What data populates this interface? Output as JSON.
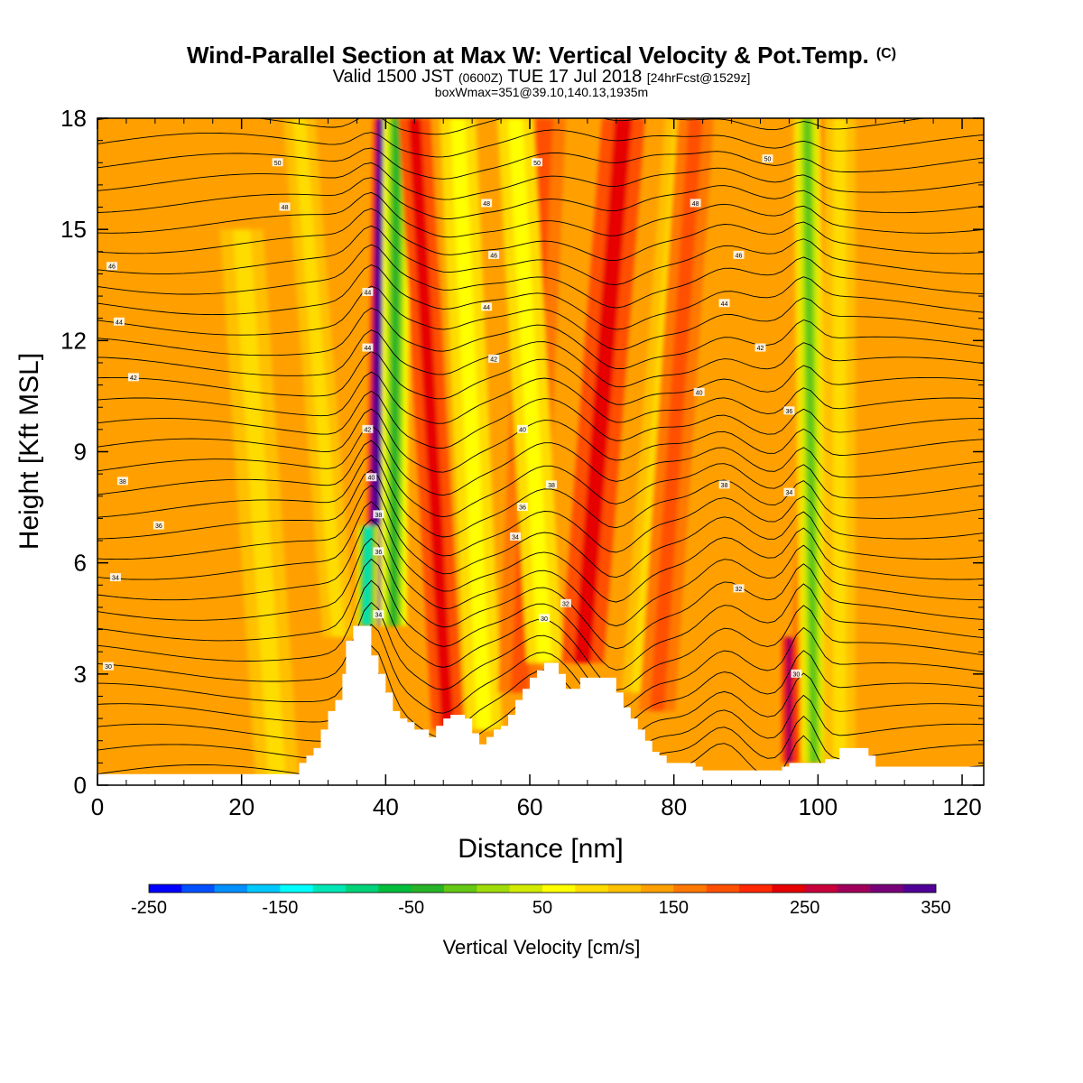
{
  "header": {
    "title_main": "Wind-Parallel Section at Max W: Vertical Velocity & Pot.Temp.",
    "title_mark": "(C)",
    "subtitle_a": "Valid 1500 JST ",
    "subtitle_b": "(0600Z)",
    "subtitle_c": " TUE 17 Jul 2018 ",
    "subtitle_d": "[24hrFcst@1529z]",
    "subtitle2": "boxWmax=351@39.10,140.13,1935m"
  },
  "chart_data": {
    "type": "heatmap",
    "xlabel": "Distance [nm]",
    "ylabel": "Height [Kft MSL]",
    "xlim": [
      0,
      123
    ],
    "ylim": [
      0,
      18
    ],
    "xticks": [
      0,
      20,
      40,
      60,
      80,
      100,
      120
    ],
    "yticks": [
      0,
      3,
      6,
      9,
      12,
      15,
      18
    ],
    "colorbar": {
      "title": "Vertical Velocity [cm/s]",
      "min": -250,
      "max": 350,
      "step": 25,
      "tick_values": [
        -250,
        -150,
        -50,
        50,
        150,
        250,
        350
      ],
      "tick_labels": [
        "-250",
        "-150",
        "-50",
        "50",
        "150",
        "250",
        "350"
      ],
      "colors": [
        "#0000ff",
        "#0050ff",
        "#0090ff",
        "#00c8ff",
        "#00ffff",
        "#00e6b4",
        "#00d278",
        "#00be3c",
        "#28b428",
        "#64c814",
        "#a0dc0a",
        "#d2ea00",
        "#ffff00",
        "#ffdc00",
        "#ffc000",
        "#ffa000",
        "#ff7800",
        "#ff5000",
        "#ff2800",
        "#e60000",
        "#c8003c",
        "#a0005a",
        "#780078",
        "#500096"
      ]
    },
    "background_level": 15,
    "features": [
      {
        "x_base": 38.5,
        "top_x": 40,
        "w": 1.3,
        "ymin": 4.3,
        "ymax": 18,
        "value": 330
      },
      {
        "x_base": 37.0,
        "top_x": 38.5,
        "w": 1.1,
        "ymin": 4.3,
        "ymax": 7,
        "value": -230
      },
      {
        "x_base": 41.0,
        "top_x": 41.5,
        "w": 1.5,
        "ymin": 4.3,
        "ymax": 18,
        "value": -160
      },
      {
        "x_base": 49,
        "top_x": 44,
        "w": 2.2,
        "ymin": 1.5,
        "ymax": 18,
        "value": 110
      },
      {
        "x_base": 54,
        "top_x": 50,
        "w": 2.5,
        "ymin": 1.5,
        "ymax": 18,
        "value": -60
      },
      {
        "x_base": 58,
        "top_x": 62,
        "w": 3.0,
        "ymin": 2.5,
        "ymax": 18,
        "value": 60
      },
      {
        "x_base": 63,
        "top_x": 58,
        "w": 2.5,
        "ymin": 3.3,
        "ymax": 18,
        "value": -60
      },
      {
        "x_base": 66,
        "top_x": 73,
        "w": 3.0,
        "ymin": 3.3,
        "ymax": 18,
        "value": 120
      },
      {
        "x_base": 74,
        "top_x": 81,
        "w": 2.2,
        "ymin": 2.5,
        "ymax": 18,
        "value": -50
      },
      {
        "x_base": 77,
        "top_x": 83,
        "w": 2.5,
        "ymin": 2,
        "ymax": 18,
        "value": 70
      },
      {
        "x_base": 97,
        "top_x": 101,
        "w": 1.5,
        "ymin": 0.6,
        "ymax": 18,
        "value": 80
      },
      {
        "x_base": 99.5,
        "top_x": 98.5,
        "w": 1.6,
        "ymin": 0.6,
        "ymax": 18,
        "value": -150
      },
      {
        "x_base": 96,
        "top_x": 96,
        "w": 0.9,
        "ymin": 0.6,
        "ymax": 4,
        "value": 150
      },
      {
        "x_base": 103,
        "top_x": 103,
        "w": 2.2,
        "ymin": 0.6,
        "ymax": 18,
        "value": -50
      },
      {
        "x_base": 35,
        "top_x": 28,
        "w": 2.2,
        "ymin": 4,
        "ymax": 18,
        "value": -50
      },
      {
        "x_base": 25,
        "top_x": 19,
        "w": 3.0,
        "ymin": 0,
        "ymax": 15,
        "value": -40
      }
    ],
    "terrain": [
      [
        0,
        0.3
      ],
      [
        27,
        0.3
      ],
      [
        28,
        0.6
      ],
      [
        29,
        0.8
      ],
      [
        30,
        1.0
      ],
      [
        31,
        1.5
      ],
      [
        32,
        2.0
      ],
      [
        33,
        2.3
      ],
      [
        34,
        3.0
      ],
      [
        34.5,
        3.9
      ],
      [
        35.5,
        4.3
      ],
      [
        37.5,
        4.3
      ],
      [
        38,
        3.5
      ],
      [
        39,
        3.0
      ],
      [
        40,
        2.5
      ],
      [
        41,
        2.0
      ],
      [
        42,
        1.8
      ],
      [
        43,
        1.7
      ],
      [
        44,
        1.5
      ],
      [
        45,
        1.5
      ],
      [
        46,
        1.3
      ],
      [
        47,
        1.6
      ],
      [
        48,
        1.8
      ],
      [
        49,
        1.9
      ],
      [
        51,
        1.8
      ],
      [
        52,
        1.4
      ],
      [
        53,
        1.1
      ],
      [
        54,
        1.3
      ],
      [
        55,
        1.5
      ],
      [
        56,
        1.6
      ],
      [
        57,
        1.9
      ],
      [
        58,
        2.3
      ],
      [
        59,
        2.6
      ],
      [
        60,
        2.9
      ],
      [
        61,
        3.1
      ],
      [
        62,
        3.3
      ],
      [
        63.5,
        3.3
      ],
      [
        64,
        3.0
      ],
      [
        65,
        2.6
      ],
      [
        66,
        2.6
      ],
      [
        67,
        2.9
      ],
      [
        71,
        2.9
      ],
      [
        72,
        2.5
      ],
      [
        73,
        2.1
      ],
      [
        74,
        1.8
      ],
      [
        75,
        1.5
      ],
      [
        76,
        1.2
      ],
      [
        77,
        0.9
      ],
      [
        78,
        0.8
      ],
      [
        79,
        0.6
      ],
      [
        83,
        0.5
      ],
      [
        84,
        0.4
      ],
      [
        90,
        0.4
      ],
      [
        94,
        0.4
      ],
      [
        95,
        0.5
      ],
      [
        96,
        0.6
      ],
      [
        100,
        0.6
      ],
      [
        101,
        0.7
      ],
      [
        103,
        1.0
      ],
      [
        106,
        1.0
      ],
      [
        107,
        0.8
      ],
      [
        108,
        0.5
      ],
      [
        123,
        0.3
      ]
    ],
    "contour_labels": [
      {
        "x": 25,
        "y": 16.8,
        "text": "50"
      },
      {
        "x": 26,
        "y": 15.6,
        "text": "48"
      },
      {
        "x": 2,
        "y": 14.0,
        "text": "46"
      },
      {
        "x": 3,
        "y": 12.5,
        "text": "44"
      },
      {
        "x": 5,
        "y": 11.0,
        "text": "42"
      },
      {
        "x": 3.5,
        "y": 8.2,
        "text": "38"
      },
      {
        "x": 8.5,
        "y": 7.0,
        "text": "36"
      },
      {
        "x": 2.5,
        "y": 5.6,
        "text": "34"
      },
      {
        "x": 1.5,
        "y": 3.2,
        "text": "30"
      },
      {
        "x": 37.5,
        "y": 13.3,
        "text": "44"
      },
      {
        "x": 37.5,
        "y": 11.8,
        "text": "44"
      },
      {
        "x": 37.5,
        "y": 9.6,
        "text": "42"
      },
      {
        "x": 38,
        "y": 8.3,
        "text": "40"
      },
      {
        "x": 39,
        "y": 7.3,
        "text": "38"
      },
      {
        "x": 39,
        "y": 6.3,
        "text": "36"
      },
      {
        "x": 39,
        "y": 4.6,
        "text": "34"
      },
      {
        "x": 61,
        "y": 16.8,
        "text": "50"
      },
      {
        "x": 54,
        "y": 15.7,
        "text": "48"
      },
      {
        "x": 55,
        "y": 14.3,
        "text": "46"
      },
      {
        "x": 54,
        "y": 12.9,
        "text": "44"
      },
      {
        "x": 55,
        "y": 11.5,
        "text": "42"
      },
      {
        "x": 59,
        "y": 9.6,
        "text": "40"
      },
      {
        "x": 63,
        "y": 8.1,
        "text": "38"
      },
      {
        "x": 59,
        "y": 7.5,
        "text": "36"
      },
      {
        "x": 58,
        "y": 6.7,
        "text": "34"
      },
      {
        "x": 65,
        "y": 4.9,
        "text": "32"
      },
      {
        "x": 62,
        "y": 4.5,
        "text": "30"
      },
      {
        "x": 93,
        "y": 16.9,
        "text": "50"
      },
      {
        "x": 83,
        "y": 15.7,
        "text": "48"
      },
      {
        "x": 89,
        "y": 14.3,
        "text": "46"
      },
      {
        "x": 87,
        "y": 13.0,
        "text": "44"
      },
      {
        "x": 92,
        "y": 11.8,
        "text": "42"
      },
      {
        "x": 83.5,
        "y": 10.6,
        "text": "40"
      },
      {
        "x": 96,
        "y": 10.1,
        "text": "36"
      },
      {
        "x": 87,
        "y": 8.1,
        "text": "38"
      },
      {
        "x": 96,
        "y": 7.9,
        "text": "34"
      },
      {
        "x": 89,
        "y": 5.3,
        "text": "32"
      },
      {
        "x": 97,
        "y": 3.0,
        "text": "30"
      }
    ]
  }
}
